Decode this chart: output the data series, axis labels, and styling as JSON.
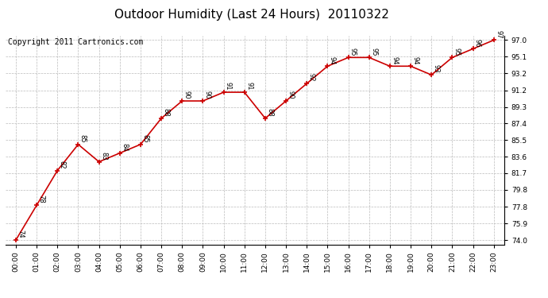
{
  "title": "Outdoor Humidity (Last 24 Hours)  20110322",
  "copyright": "Copyright 2011 Cartronics.com",
  "x_labels": [
    "00:00",
    "01:00",
    "02:00",
    "03:00",
    "04:00",
    "05:00",
    "06:00",
    "07:00",
    "08:00",
    "09:00",
    "10:00",
    "11:00",
    "12:00",
    "13:00",
    "14:00",
    "15:00",
    "16:00",
    "17:00",
    "18:00",
    "19:00",
    "20:00",
    "21:00",
    "22:00",
    "23:00"
  ],
  "y_values": [
    74,
    78,
    82,
    85,
    83,
    84,
    85,
    88,
    90,
    90,
    91,
    91,
    88,
    90,
    92,
    94,
    95,
    95,
    94,
    94,
    93,
    95,
    96,
    97
  ],
  "y_labels": [
    74.0,
    75.9,
    77.8,
    79.8,
    81.7,
    83.6,
    85.5,
    87.4,
    89.3,
    91.2,
    93.2,
    95.1,
    97.0
  ],
  "ylim": [
    73.5,
    97.5
  ],
  "line_color": "#cc0000",
  "marker_color": "#cc0000",
  "bg_color": "#ffffff",
  "grid_color": "#bbbbbb",
  "title_fontsize": 11,
  "annotation_fontsize": 6,
  "copyright_fontsize": 7
}
